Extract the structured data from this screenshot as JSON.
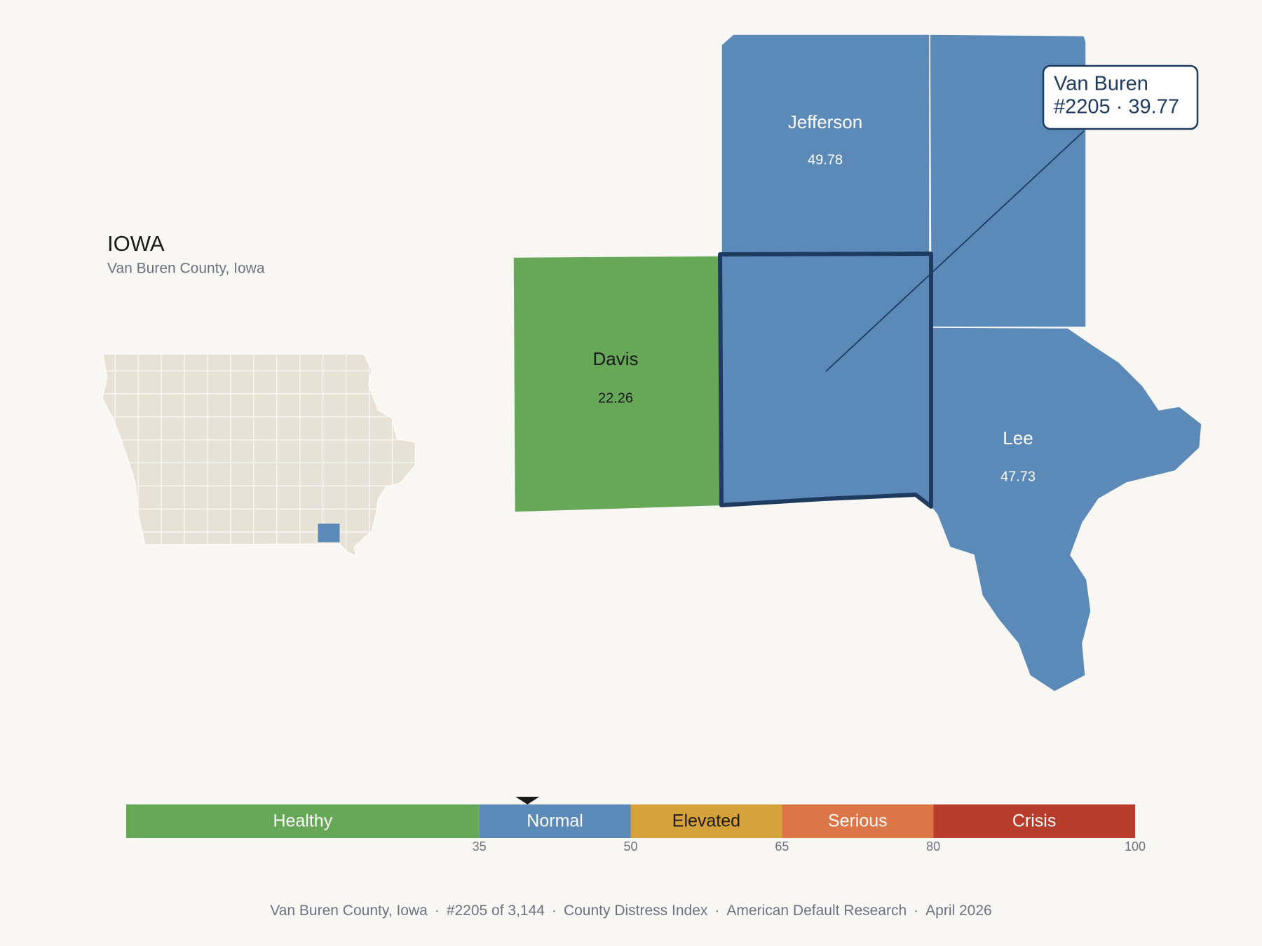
{
  "header": {
    "title": "IOWA",
    "subtitle": "Van Buren County, Iowa"
  },
  "counties": [
    {
      "name": "Jefferson",
      "value": 49.78,
      "color": "#5b89b8"
    },
    {
      "name": "Davis",
      "value": 22.26,
      "color": "#67a758"
    },
    {
      "name": "Lee",
      "value": 47.73,
      "color": "#5b89b8"
    }
  ],
  "selected": {
    "name": "Van Buren",
    "label": "#2205 · 39.77",
    "value": 39.77,
    "color": "#5b89b8"
  },
  "scale": {
    "range": [
      0,
      100
    ],
    "segments": [
      {
        "label": "Healthy",
        "from": 0,
        "to": 35,
        "color": "#67a758"
      },
      {
        "label": "Normal",
        "from": 35,
        "to": 50,
        "color": "#5b89b8"
      },
      {
        "label": "Elevated",
        "from": 50,
        "to": 65,
        "color": "#d4a13a"
      },
      {
        "label": "Serious",
        "from": 65,
        "to": 80,
        "color": "#dc7646"
      },
      {
        "label": "Crisis",
        "from": 80,
        "to": 100,
        "color": "#b83c2c"
      }
    ],
    "ticks": [
      35,
      50,
      65,
      80,
      100
    ]
  },
  "footer": {
    "separator": "·",
    "items": [
      "Van Buren County, Iowa",
      "#2205 of 3,144",
      "County Distress Index",
      "American Default Research",
      "April 2026"
    ]
  }
}
